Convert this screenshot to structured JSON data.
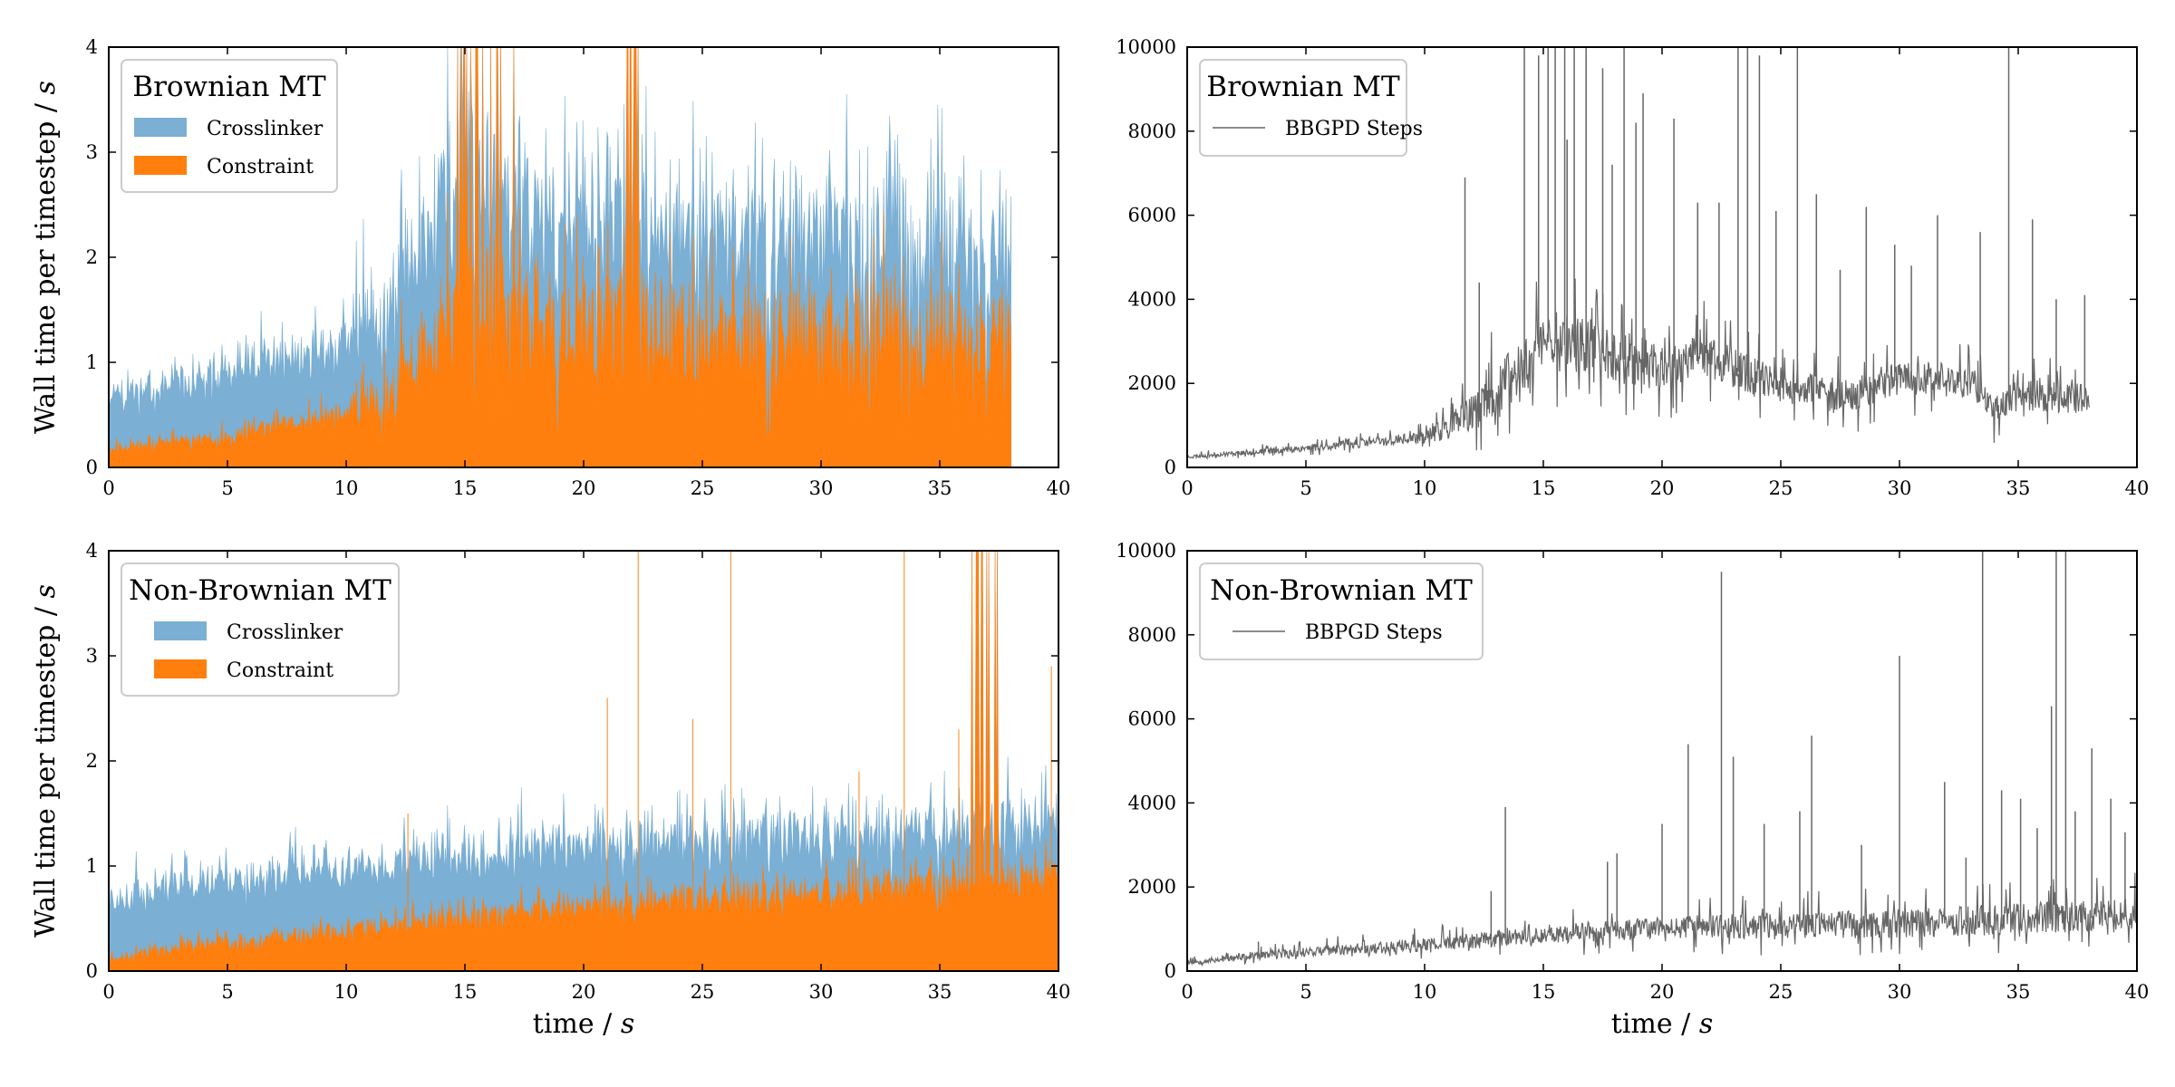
{
  "colors": {
    "crosslinker": "#7bafd4",
    "constraint": "#ff7f0e",
    "steps_line": "#666666",
    "axis": "#000000",
    "legend_border": "#cccccc"
  },
  "chart_data": [
    {
      "id": "top_left",
      "type": "area",
      "stacked": true,
      "legend_title": "Brownian MT",
      "legend_loc": "top-left",
      "xlabel": "",
      "ylabel_main": "Wall time per timestep / ",
      "ylabel_unit": "s",
      "xlim": [
        0,
        40
      ],
      "ylim": [
        0,
        4
      ],
      "xticks": [
        0,
        5,
        10,
        15,
        20,
        25,
        30,
        35,
        40
      ],
      "yticks": [
        0,
        1,
        2,
        3,
        4
      ],
      "x_end": 38,
      "series": [
        {
          "name": "Crosslinker",
          "key": "crosslinker"
        },
        {
          "name": "Constraint",
          "key": "constraint"
        }
      ],
      "constraint_baseline": [
        [
          0,
          0.18
        ],
        [
          5,
          0.28
        ],
        [
          10,
          0.5
        ],
        [
          12,
          0.7
        ],
        [
          13.5,
          1.2
        ],
        [
          15,
          1.5
        ],
        [
          17,
          1.4
        ],
        [
          20,
          1.2
        ],
        [
          22,
          1.4
        ],
        [
          25,
          1.2
        ],
        [
          30,
          1.15
        ],
        [
          33,
          1.3
        ],
        [
          34,
          1.0
        ],
        [
          35,
          1.2
        ],
        [
          38,
          1.1
        ]
      ],
      "constraint_noise": [
        [
          0,
          0.05
        ],
        [
          10,
          0.15
        ],
        [
          13,
          0.5
        ],
        [
          15,
          0.8
        ],
        [
          18,
          0.6
        ],
        [
          25,
          0.6
        ],
        [
          38,
          0.6
        ]
      ],
      "crosslinker_baseline": [
        [
          0,
          0.45
        ],
        [
          5,
          0.55
        ],
        [
          10,
          0.65
        ],
        [
          12,
          0.85
        ],
        [
          14,
          1.1
        ],
        [
          18,
          1.0
        ],
        [
          22,
          0.9
        ],
        [
          30,
          0.9
        ],
        [
          38,
          0.8
        ]
      ],
      "crosslinker_noise": [
        [
          0,
          0.15
        ],
        [
          10,
          0.3
        ],
        [
          14,
          0.6
        ],
        [
          38,
          0.5
        ]
      ],
      "spike_windows": [
        [
          14.5,
          17.2,
          0.25
        ],
        [
          21.8,
          22.3,
          0.6
        ]
      ],
      "seed": 11
    },
    {
      "id": "top_right",
      "type": "line",
      "legend_title": "Brownian MT",
      "legend_loc": "top-left",
      "xlabel": "",
      "xlim": [
        0,
        40
      ],
      "ylim": [
        0,
        10000
      ],
      "xticks": [
        0,
        5,
        10,
        15,
        20,
        25,
        30,
        35,
        40
      ],
      "yticks": [
        0,
        2000,
        4000,
        6000,
        8000,
        10000
      ],
      "x_end": 38,
      "series": [
        {
          "name": "BBGPD Steps",
          "key": "steps_line"
        }
      ],
      "baseline": [
        [
          0,
          250
        ],
        [
          5,
          450
        ],
        [
          10,
          700
        ],
        [
          12,
          1200
        ],
        [
          14,
          2200
        ],
        [
          15,
          3000
        ],
        [
          17,
          2800
        ],
        [
          20,
          2300
        ],
        [
          22,
          2600
        ],
        [
          25,
          1800
        ],
        [
          28,
          1700
        ],
        [
          30,
          2100
        ],
        [
          33,
          2000
        ],
        [
          34,
          1400
        ],
        [
          35,
          1700
        ],
        [
          38,
          1600
        ]
      ],
      "noise": [
        [
          0,
          40
        ],
        [
          10,
          150
        ],
        [
          14,
          900
        ],
        [
          18,
          700
        ],
        [
          25,
          500
        ],
        [
          38,
          400
        ]
      ],
      "spikes": [
        [
          11.7,
          6900
        ],
        [
          12.3,
          4400
        ],
        [
          14.2,
          10000
        ],
        [
          14.8,
          9800
        ],
        [
          15.2,
          10000
        ],
        [
          15.5,
          10000
        ],
        [
          15.9,
          10000
        ],
        [
          16.3,
          10000
        ],
        [
          16.8,
          10000
        ],
        [
          17.5,
          9500
        ],
        [
          18.4,
          10000
        ],
        [
          19.2,
          8900
        ],
        [
          20.5,
          8300
        ],
        [
          21.5,
          6300
        ],
        [
          22.4,
          6300
        ],
        [
          23.2,
          10000
        ],
        [
          23.6,
          10000
        ],
        [
          24.1,
          9800
        ],
        [
          24.8,
          6100
        ],
        [
          25.7,
          10000
        ],
        [
          26.5,
          6500
        ],
        [
          27.5,
          4700
        ],
        [
          28.6,
          6200
        ],
        [
          29.8,
          5300
        ],
        [
          30.5,
          4800
        ],
        [
          31.6,
          6000
        ],
        [
          33.4,
          5600
        ],
        [
          34.6,
          10000
        ],
        [
          35.6,
          5900
        ],
        [
          36.6,
          4000
        ],
        [
          37.8,
          4100
        ],
        [
          16.0,
          7800
        ],
        [
          18.9,
          8200
        ],
        [
          17.9,
          7200
        ]
      ],
      "seed": 23
    },
    {
      "id": "bottom_left",
      "type": "area",
      "stacked": true,
      "legend_title": "Non-Brownian MT",
      "legend_loc": "top-left",
      "xlabel_main": "time / ",
      "xlabel_unit": "s",
      "ylabel_main": "Wall time per timestep / ",
      "ylabel_unit": "s",
      "xlim": [
        0,
        40
      ],
      "ylim": [
        0,
        4
      ],
      "xticks": [
        0,
        5,
        10,
        15,
        20,
        25,
        30,
        35,
        40
      ],
      "yticks": [
        0,
        1,
        2,
        3,
        4
      ],
      "x_end": 40,
      "series": [
        {
          "name": "Crosslinker",
          "key": "crosslinker"
        },
        {
          "name": "Constraint",
          "key": "constraint"
        }
      ],
      "constraint_baseline": [
        [
          0,
          0.12
        ],
        [
          5,
          0.28
        ],
        [
          10,
          0.38
        ],
        [
          15,
          0.5
        ],
        [
          20,
          0.6
        ],
        [
          25,
          0.68
        ],
        [
          30,
          0.75
        ],
        [
          35,
          0.8
        ],
        [
          40,
          0.9
        ]
      ],
      "constraint_noise": [
        [
          0,
          0.06
        ],
        [
          20,
          0.15
        ],
        [
          40,
          0.2
        ]
      ],
      "crosslinker_baseline": [
        [
          0,
          0.55
        ],
        [
          5,
          0.55
        ],
        [
          10,
          0.55
        ],
        [
          20,
          0.55
        ],
        [
          30,
          0.5
        ],
        [
          40,
          0.45
        ]
      ],
      "crosslinker_noise": [
        [
          0,
          0.2
        ],
        [
          20,
          0.25
        ],
        [
          40,
          0.3
        ]
      ],
      "spike_windows": [
        [
          36.2,
          37.5,
          0.3
        ]
      ],
      "constraint_spikes": [
        [
          12.6,
          1.5
        ],
        [
          21.0,
          2.6
        ],
        [
          22.3,
          4.0
        ],
        [
          24.6,
          2.4
        ],
        [
          26.2,
          4.0
        ],
        [
          31.6,
          1.9
        ],
        [
          33.5,
          4.0
        ],
        [
          35.8,
          2.3
        ],
        [
          39.7,
          2.9
        ]
      ],
      "seed": 37
    },
    {
      "id": "bottom_right",
      "type": "line",
      "legend_title": "Non-Brownian MT",
      "legend_loc": "top-left",
      "xlabel_main": "time / ",
      "xlabel_unit": "s",
      "xlim": [
        0,
        40
      ],
      "ylim": [
        0,
        10000
      ],
      "xticks": [
        0,
        5,
        10,
        15,
        20,
        25,
        30,
        35,
        40
      ],
      "yticks": [
        0,
        2000,
        4000,
        6000,
        8000,
        10000
      ],
      "x_end": 40,
      "series": [
        {
          "name": "BBPGD Steps",
          "key": "steps_line"
        }
      ],
      "baseline": [
        [
          0,
          200
        ],
        [
          5,
          450
        ],
        [
          10,
          600
        ],
        [
          15,
          850
        ],
        [
          20,
          1000
        ],
        [
          25,
          1050
        ],
        [
          30,
          1100
        ],
        [
          35,
          1200
        ],
        [
          40,
          1300
        ]
      ],
      "noise": [
        [
          0,
          60
        ],
        [
          15,
          250
        ],
        [
          25,
          350
        ],
        [
          40,
          450
        ]
      ],
      "spikes": [
        [
          3.0,
          700
        ],
        [
          12.8,
          1900
        ],
        [
          13.4,
          3900
        ],
        [
          17.7,
          2600
        ],
        [
          18.1,
          2800
        ],
        [
          20.0,
          3500
        ],
        [
          21.1,
          5400
        ],
        [
          22.5,
          9500
        ],
        [
          23.0,
          5100
        ],
        [
          24.3,
          3500
        ],
        [
          25.8,
          3800
        ],
        [
          26.3,
          5600
        ],
        [
          28.4,
          3000
        ],
        [
          30.0,
          7500
        ],
        [
          31.9,
          4500
        ],
        [
          32.8,
          2700
        ],
        [
          33.5,
          10000
        ],
        [
          34.3,
          4300
        ],
        [
          35.1,
          4100
        ],
        [
          35.8,
          3400
        ],
        [
          36.4,
          6300
        ],
        [
          36.6,
          10000
        ],
        [
          37.0,
          10000
        ],
        [
          37.4,
          3800
        ],
        [
          38.1,
          5300
        ],
        [
          38.9,
          4100
        ],
        [
          39.5,
          3300
        ],
        [
          40.0,
          4100
        ]
      ],
      "seed": 53
    }
  ]
}
